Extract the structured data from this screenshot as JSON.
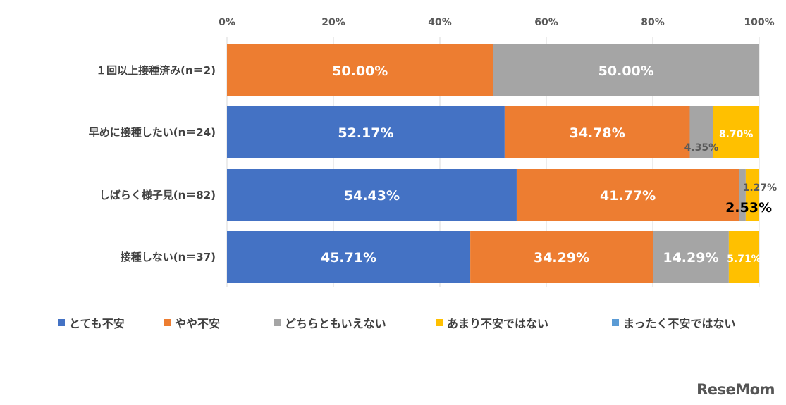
{
  "chart_data": {
    "type": "bar",
    "orientation": "horizontal",
    "stacked": "percent",
    "categories": [
      "１回以上接種済み(n＝2)",
      "早めに接種したい(n＝24)",
      "しばらく様子見(n＝82)",
      "接種しない(n＝37)"
    ],
    "series": [
      {
        "name": "とても不安",
        "color": "#4472C4",
        "values": [
          0,
          52.17,
          54.43,
          45.71
        ],
        "labels": [
          "",
          "52.17%",
          "54.43%",
          "45.71%"
        ]
      },
      {
        "name": "やや不安",
        "color": "#ED7D31",
        "values": [
          50.0,
          34.78,
          41.77,
          34.29
        ],
        "labels": [
          "50.00%",
          "34.78%",
          "41.77%",
          "34.29%"
        ]
      },
      {
        "name": "どちらともいえない",
        "color": "#A5A5A5",
        "values": [
          50.0,
          4.35,
          1.27,
          14.29
        ],
        "labels": [
          "50.00%",
          "4.35%",
          "1.27%",
          "14.29%"
        ]
      },
      {
        "name": "あまり不安ではない",
        "color": "#FFC000",
        "values": [
          0,
          8.7,
          2.53,
          5.71
        ],
        "labels": [
          "",
          "8.70%",
          "2.53%",
          "5.71%"
        ]
      },
      {
        "name": "まったく不安ではない",
        "color": "#5B9BD5",
        "values": [
          0,
          0,
          0,
          0
        ],
        "labels": [
          "",
          "",
          "",
          ""
        ]
      }
    ],
    "xticks": [
      "0%",
      "20%",
      "40%",
      "60%",
      "80%",
      "100%"
    ],
    "xlim": [
      0,
      100
    ],
    "legend_position": "bottom",
    "grid": true
  },
  "watermark": "ReseMom"
}
